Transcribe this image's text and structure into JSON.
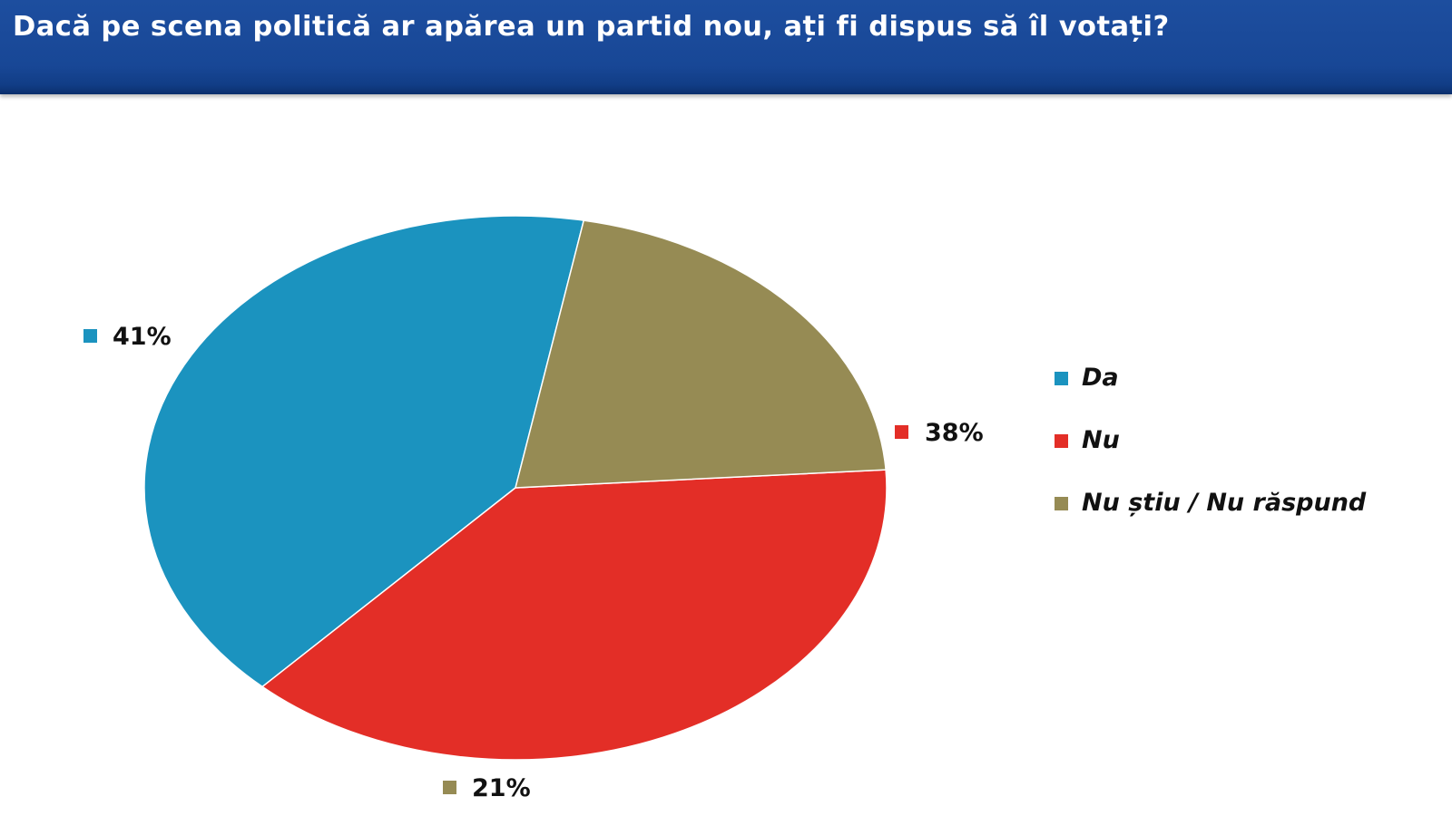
{
  "header": {
    "title": "Dacă pe scena politică ar apărea un partid nou, ați fi dispus să îl votați?"
  },
  "chart_data": {
    "type": "pie",
    "title": "Dacă pe scena politică ar apărea un partid nou, ați fi dispus să îl votați?",
    "categories": [
      "Da",
      "Nu",
      "Nu știu / Nu răspund"
    ],
    "values": [
      41,
      38,
      21
    ],
    "value_labels": [
      "41%",
      "38%",
      "21%"
    ],
    "colors": [
      "#1b93bf",
      "#e32e27",
      "#968b54"
    ],
    "legend_position": "right",
    "grid": false
  }
}
